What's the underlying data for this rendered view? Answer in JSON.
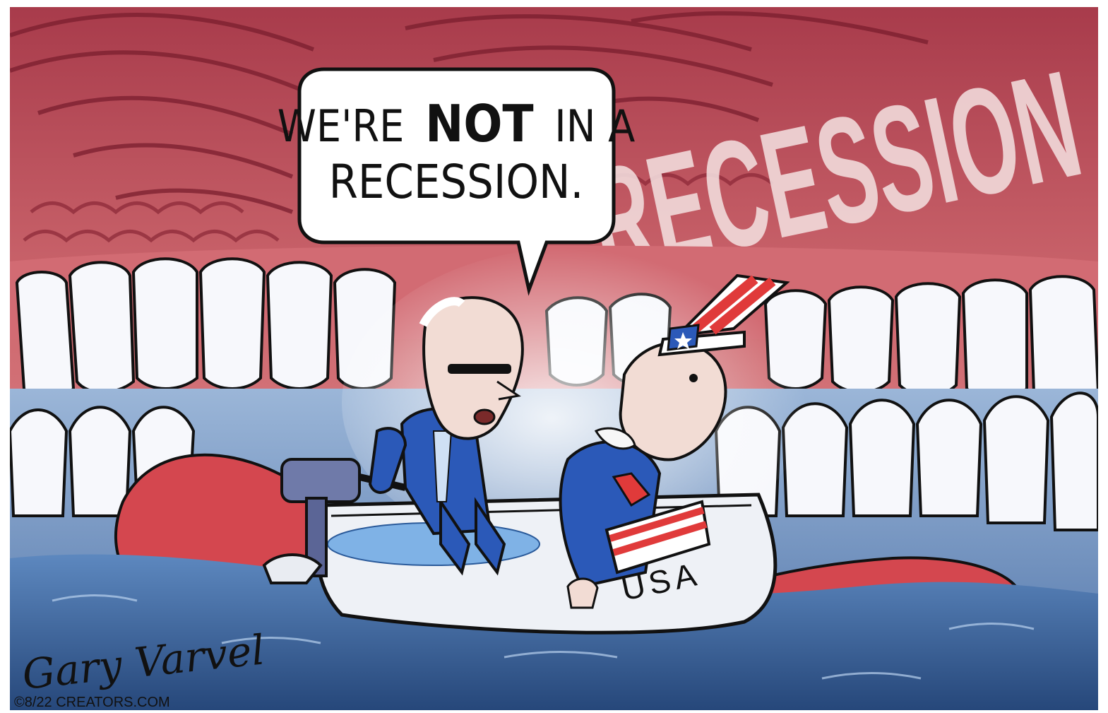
{
  "cartoon": {
    "speech_bubble": {
      "part1": "WE'RE",
      "emphasis": "NOT",
      "part2": "IN A",
      "line2": "RECESSION."
    },
    "mouth_label": "RECESSION",
    "boat_label": "USA",
    "signature": "Gary Varvel",
    "copyright": "©8/22 CREATORS.COM"
  },
  "colors": {
    "mouth": "#c9555f",
    "mouth_dark": "#8e2d3a",
    "tongue": "#d4474f",
    "water": "#3b6aa6",
    "teeth": "#f6f7fb",
    "suit": "#2b59b8"
  }
}
